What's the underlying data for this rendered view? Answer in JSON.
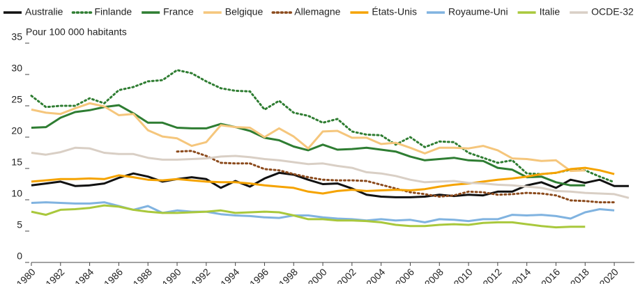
{
  "chart_data": {
    "type": "line",
    "y_label": "Pour 100 000 habitants",
    "x": [
      1980,
      1981,
      1982,
      1983,
      1984,
      1985,
      1986,
      1987,
      1988,
      1989,
      1990,
      1991,
      1992,
      1993,
      1994,
      1995,
      1996,
      1997,
      1998,
      1999,
      2000,
      2001,
      2002,
      2003,
      2004,
      2005,
      2006,
      2007,
      2008,
      2009,
      2010,
      2011,
      2012,
      2013,
      2014,
      2015,
      2016,
      2017,
      2018,
      2019,
      2020,
      2021
    ],
    "xlim": [
      1980,
      2021
    ],
    "xticks": [
      1980,
      1982,
      1984,
      1986,
      1988,
      1990,
      1992,
      1994,
      1996,
      1998,
      2000,
      2002,
      2004,
      2006,
      2008,
      2010,
      2012,
      2014,
      2016,
      2018,
      2020
    ],
    "ylim": [
      0,
      35
    ],
    "yticks": [
      0,
      5,
      10,
      15,
      20,
      25,
      30,
      35
    ],
    "grid": false,
    "legend": "top",
    "series": [
      {
        "name": "Australie",
        "color": "#111111",
        "line_style": "solid",
        "values": [
          12.3,
          12.6,
          12.9,
          12.2,
          12.3,
          12.6,
          13.5,
          14.2,
          13.7,
          12.9,
          13.3,
          13.6,
          13.3,
          11.9,
          13.0,
          12.1,
          13.4,
          14.3,
          14.0,
          13.2,
          12.5,
          12.6,
          11.8,
          10.8,
          10.5,
          10.4,
          10.4,
          10.5,
          10.8,
          10.6,
          10.8,
          10.7,
          11.3,
          11.3,
          12.3,
          12.8,
          11.9,
          13.2,
          12.7,
          13.2,
          12.2,
          12.2
        ]
      },
      {
        "name": "Finlande",
        "color": "#2f7d32",
        "line_style": "dotted",
        "values": [
          26.6,
          24.8,
          25.0,
          25.0,
          26.2,
          25.4,
          27.5,
          28.0,
          28.9,
          29.1,
          30.7,
          30.2,
          28.9,
          27.8,
          27.4,
          27.3,
          24.4,
          25.8,
          23.9,
          23.4,
          22.3,
          22.9,
          20.9,
          20.4,
          20.3,
          18.8,
          20.0,
          18.4,
          19.3,
          19.2,
          17.5,
          16.7,
          15.9,
          16.3,
          14.2,
          14.1,
          14.3,
          14.8,
          14.7,
          13.7,
          12.8,
          null
        ]
      },
      {
        "name": "France",
        "color": "#2e7d32",
        "line_style": "solid",
        "values": [
          21.5,
          21.6,
          23.1,
          24.0,
          24.3,
          24.8,
          25.1,
          23.8,
          22.3,
          22.3,
          21.5,
          21.4,
          21.4,
          22.1,
          21.6,
          21.0,
          19.9,
          19.5,
          18.5,
          17.9,
          18.8,
          18.0,
          18.1,
          18.3,
          18.0,
          17.7,
          16.9,
          16.3,
          16.5,
          16.7,
          16.3,
          16.2,
          15.1,
          14.8,
          13.6,
          13.7,
          12.8,
          12.3,
          12.3,
          null,
          null,
          null
        ]
      },
      {
        "name": "Belgique",
        "color": "#f5c67c",
        "line_style": "solid",
        "values": [
          24.4,
          23.9,
          23.7,
          24.6,
          25.4,
          24.9,
          23.5,
          23.7,
          21.1,
          20.1,
          19.8,
          18.6,
          19.2,
          21.9,
          21.6,
          21.5,
          20.0,
          21.4,
          20.1,
          18.2,
          20.9,
          21.0,
          19.9,
          19.9,
          18.9,
          19.1,
          18.3,
          17.4,
          18.3,
          18.3,
          18.2,
          18.6,
          17.9,
          16.6,
          16.5,
          16.2,
          16.3,
          14.6,
          14.7,
          null,
          null,
          null
        ]
      },
      {
        "name": "Allemagne",
        "color": "#8b4a1c",
        "line_style": "dotted",
        "values": [
          null,
          null,
          null,
          null,
          null,
          null,
          null,
          null,
          null,
          null,
          17.7,
          17.8,
          17.0,
          15.9,
          15.8,
          15.8,
          14.9,
          14.7,
          14.1,
          13.6,
          13.2,
          13.1,
          13.1,
          13.0,
          12.4,
          11.8,
          11.2,
          10.9,
          10.5,
          10.7,
          11.3,
          11.2,
          10.8,
          10.9,
          11.1,
          11.0,
          10.7,
          9.9,
          9.8,
          9.6,
          9.6,
          null
        ]
      },
      {
        "name": "États-Unis",
        "color": "#f5a300",
        "line_style": "solid",
        "values": [
          12.9,
          13.1,
          13.3,
          13.3,
          13.4,
          13.3,
          13.9,
          13.6,
          13.2,
          13.1,
          13.3,
          13.1,
          12.9,
          12.8,
          12.8,
          12.6,
          12.3,
          12.1,
          11.9,
          11.3,
          11.0,
          11.4,
          11.6,
          11.4,
          11.5,
          11.6,
          11.5,
          11.7,
          12.1,
          12.4,
          12.6,
          12.9,
          13.2,
          13.4,
          13.7,
          14.1,
          14.3,
          14.9,
          15.1,
          14.7,
          14.1,
          null
        ]
      },
      {
        "name": "Royaume-Uni",
        "color": "#80b3e0",
        "line_style": "solid",
        "values": [
          9.5,
          9.6,
          9.5,
          9.4,
          9.4,
          9.6,
          9.0,
          8.4,
          9.0,
          7.9,
          8.3,
          8.1,
          8.1,
          7.7,
          7.5,
          7.4,
          7.2,
          7.1,
          7.5,
          7.5,
          7.2,
          7.0,
          6.9,
          6.7,
          6.9,
          6.7,
          6.8,
          6.4,
          6.9,
          6.8,
          6.6,
          6.9,
          6.9,
          7.6,
          7.5,
          7.6,
          7.4,
          7.0,
          8.0,
          8.5,
          8.3,
          null
        ]
      },
      {
        "name": "Italie",
        "color": "#a9c83c",
        "line_style": "solid",
        "values": [
          8.1,
          7.6,
          8.4,
          8.5,
          8.7,
          9.1,
          8.9,
          8.4,
          8.1,
          7.9,
          7.9,
          8.0,
          8.1,
          8.3,
          7.9,
          8.0,
          8.1,
          8.0,
          7.5,
          6.9,
          6.9,
          6.7,
          6.7,
          6.6,
          6.4,
          6.0,
          5.8,
          5.8,
          6.0,
          6.1,
          6.0,
          6.3,
          6.4,
          6.4,
          6.1,
          5.8,
          5.6,
          5.7,
          5.7,
          null,
          null,
          null
        ]
      },
      {
        "name": "OCDE-32",
        "color": "#d9cfc5",
        "line_style": "solid",
        "values": [
          17.5,
          17.2,
          17.6,
          18.3,
          18.2,
          17.5,
          17.3,
          17.3,
          16.7,
          16.4,
          16.4,
          16.5,
          16.6,
          16.9,
          17.0,
          16.8,
          16.5,
          16.3,
          16.0,
          15.7,
          15.8,
          15.4,
          15.1,
          14.4,
          14.2,
          13.8,
          13.2,
          12.8,
          12.9,
          13.0,
          12.7,
          12.6,
          12.4,
          12.3,
          12.1,
          11.9,
          11.4,
          11.3,
          11.1,
          11.0,
          10.9,
          10.3
        ]
      }
    ]
  }
}
